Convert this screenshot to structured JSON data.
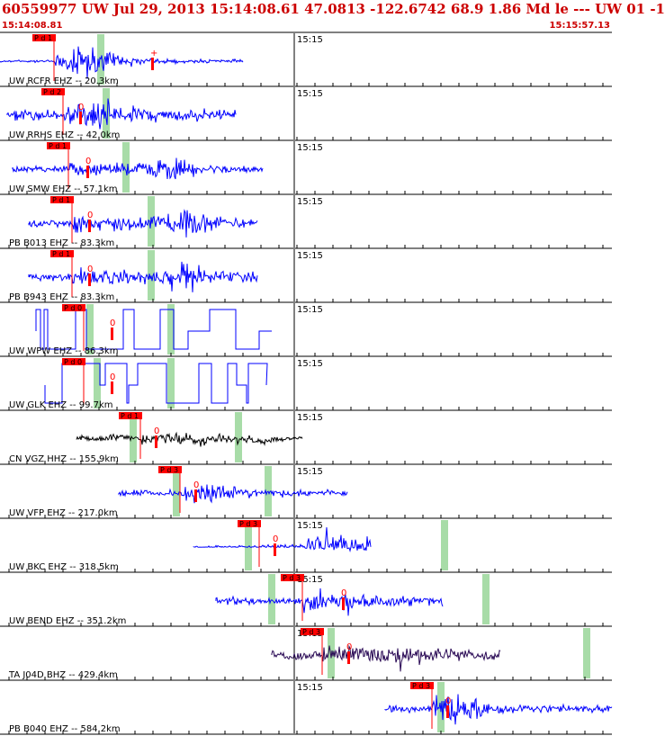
{
  "header": {
    "title": "60559977 UW Jul 29, 2013 15:14:08.61    47.0813 -122.6742 68.9 1.86 Md le --- UW 01   -1",
    "start_time": "15:14:08.81",
    "end_time": "15:15:57.13",
    "minute_label": "15:15"
  },
  "colors": {
    "trace_blue": "#0000ff",
    "trace_black": "#000000",
    "trace_purple": "#2a0a55",
    "pick_red": "#ff0000",
    "window_green": "#a8dca8",
    "divider": "#000000"
  },
  "traces": [
    {
      "label": "UW RCFR EHZ -- 20.3km",
      "pick": "P d 1",
      "s_mark": "+"
    },
    {
      "label": "UW RRHS EHZ -- 42.0km",
      "pick": "P d 2",
      "s_mark": "0"
    },
    {
      "label": "UW SMW EHZ -- 57.1km",
      "pick": "P d 1",
      "s_mark": "0"
    },
    {
      "label": "PB B013 EHZ -- 83.3km",
      "pick": "P d 1",
      "s_mark": "0"
    },
    {
      "label": "PB B943 EHZ -- 83.3km",
      "pick": "P d 1",
      "s_mark": "0"
    },
    {
      "label": "UW WPW EHZ -- 86.3km",
      "pick": "P d 0",
      "s_mark": "0"
    },
    {
      "label": "UW GLK EHZ -- 99.7km",
      "pick": "P d 0",
      "s_mark": "0"
    },
    {
      "label": "CN VGZ HHZ -- 155.9km",
      "pick": "P d 1",
      "s_mark": "0"
    },
    {
      "label": "UW VFP EHZ -- 217.0km",
      "pick": "P d 3",
      "s_mark": "0"
    },
    {
      "label": "UW BKC EHZ -- 318.5km",
      "pick": "P d 3",
      "s_mark": "0"
    },
    {
      "label": "UW BEND EHZ -- 351.2km",
      "pick": "P d 3",
      "s_mark": "0"
    },
    {
      "label": "TA J04D BHZ -- 429.4km",
      "pick": "P d 3",
      "s_mark": "0"
    },
    {
      "label": "PB B040 EHZ -- 584.2km",
      "pick": "P d 3",
      "s_mark": "0"
    }
  ]
}
